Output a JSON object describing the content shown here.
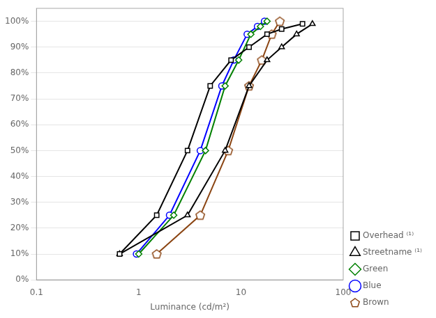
{
  "chart_data": {
    "type": "line",
    "xlabel": "Luminance (cd/m²)",
    "log": "x",
    "xlim": [
      0.1,
      100
    ],
    "xticks": [
      0.1,
      1,
      10,
      100
    ],
    "ylim": [
      0,
      1.05
    ],
    "yticks": [
      {
        "value": 0.0,
        "label": "0%"
      },
      {
        "value": 0.1,
        "label": "10%"
      },
      {
        "value": 0.2,
        "label": "20%"
      },
      {
        "value": 0.3,
        "label": "30%"
      },
      {
        "value": 0.4,
        "label": "40%"
      },
      {
        "value": 0.5,
        "label": "50%"
      },
      {
        "value": 0.6,
        "label": "60%"
      },
      {
        "value": 0.7,
        "label": "70%"
      },
      {
        "value": 0.8,
        "label": "80%"
      },
      {
        "value": 0.9,
        "label": "90%"
      },
      {
        "value": 1.0,
        "label": "100%"
      }
    ],
    "grid": "y",
    "legend": "lower right",
    "series": [
      {
        "name": "Overhead ⁽¹⁾",
        "color": "#000000",
        "marker": "square",
        "x": [
          0.65,
          1.5,
          3.0,
          5.0,
          8.0,
          12.0,
          18.0,
          25.0,
          40.0
        ],
        "values": [
          0.1,
          0.25,
          0.5,
          0.75,
          0.85,
          0.9,
          0.95,
          0.97,
          0.99
        ]
      },
      {
        "name": "Streetname ⁽¹⁾",
        "color": "#000000",
        "marker": "triangle",
        "x": [
          0.65,
          3.0,
          7.0,
          12.0,
          18.0,
          25.0,
          35.0,
          50.0
        ],
        "values": [
          0.1,
          0.25,
          0.5,
          0.75,
          0.85,
          0.9,
          0.95,
          0.99
        ]
      },
      {
        "name": "Green",
        "color": "#008000",
        "marker": "diamond",
        "x": [
          1.0,
          2.2,
          4.5,
          7.0,
          9.5,
          12.5,
          15.5,
          18.0
        ],
        "values": [
          0.1,
          0.25,
          0.5,
          0.75,
          0.85,
          0.95,
          0.98,
          1.0
        ]
      },
      {
        "name": "Blue",
        "color": "#0000FF",
        "marker": "circle",
        "x": [
          0.95,
          2.0,
          4.0,
          6.5,
          8.5,
          11.5,
          14.5,
          17.0
        ],
        "values": [
          0.1,
          0.25,
          0.5,
          0.75,
          0.85,
          0.95,
          0.98,
          1.0
        ]
      },
      {
        "name": "Brown",
        "color": "#8B4513",
        "marker": "pentagon",
        "x": [
          1.5,
          4.0,
          7.5,
          12.0,
          16.0,
          20.0,
          24.0
        ],
        "values": [
          0.1,
          0.25,
          0.5,
          0.75,
          0.85,
          0.95,
          1.0
        ]
      }
    ]
  }
}
